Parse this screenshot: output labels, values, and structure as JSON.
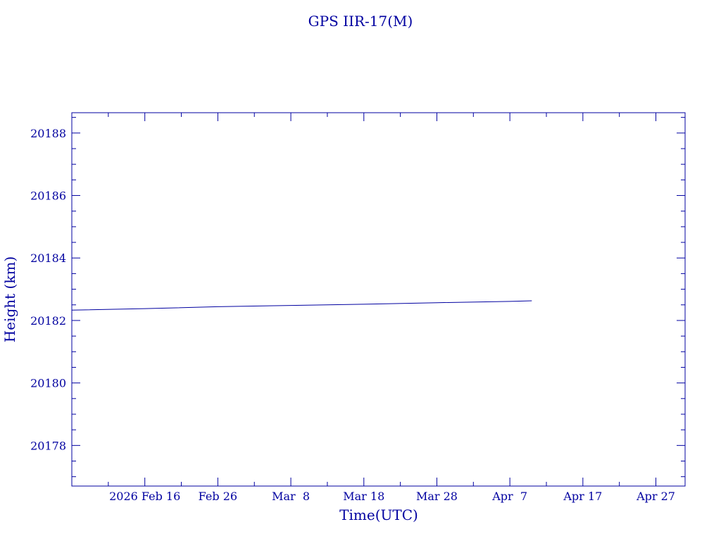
{
  "chart_data": {
    "type": "line",
    "title": "GPS IIR-17(M)",
    "xlabel": "Time(UTC)",
    "ylabel": "Height (km)",
    "color": "#0000a0",
    "x_tick_labels": [
      "2026 Feb 16",
      "Feb 26",
      "Mar  8",
      "Mar 18",
      "Mar 28",
      "Apr  7",
      "Apr 17",
      "Apr 27"
    ],
    "x_tick_dates": [
      "2026-02-16",
      "2026-02-26",
      "2026-03-08",
      "2026-03-18",
      "2026-03-28",
      "2026-04-07",
      "2026-04-17",
      "2026-04-27"
    ],
    "y_tick_labels": [
      "20178",
      "20180",
      "20182",
      "20184",
      "20186",
      "20188"
    ],
    "xlim": [
      "2026-02-06",
      "2026-05-01"
    ],
    "ylim": [
      20176.7,
      20188.65
    ],
    "grid": false,
    "series": [
      {
        "x": [
          "2026-02-06",
          "2026-02-16",
          "2026-02-26",
          "2026-03-08",
          "2026-03-18",
          "2026-03-28",
          "2026-04-07",
          "2026-04-10"
        ],
        "y": [
          20182.33,
          20182.38,
          20182.44,
          20182.48,
          20182.52,
          20182.57,
          20182.61,
          20182.63
        ]
      }
    ]
  }
}
